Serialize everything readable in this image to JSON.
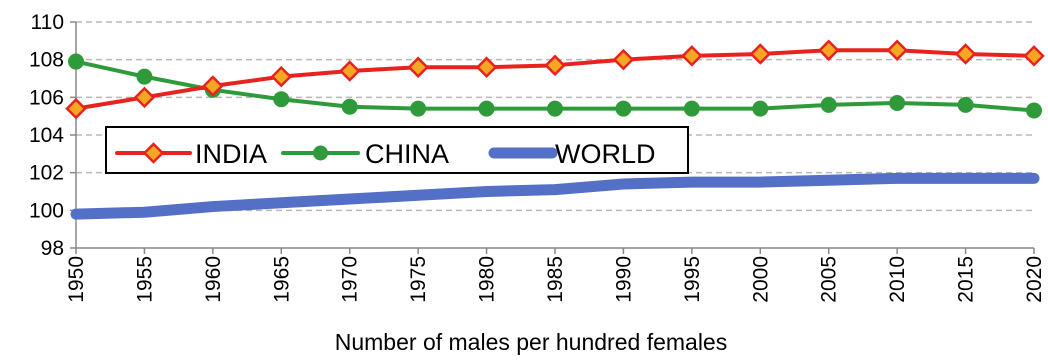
{
  "chart_data": {
    "type": "line",
    "title": "",
    "xlabel": "Number of males per hundred females",
    "ylabel": "",
    "x": [
      1950,
      1955,
      1960,
      1965,
      1970,
      1975,
      1980,
      1985,
      1990,
      1995,
      2000,
      2005,
      2010,
      2015,
      2020
    ],
    "ylim": [
      98,
      110
    ],
    "yticks": [
      98,
      100,
      102,
      104,
      106,
      108,
      110
    ],
    "grid": true,
    "legend_placement": "center-left",
    "series": [
      {
        "name": "INDIA",
        "color": "#e8231f",
        "marker": "diamond",
        "marker_fill": "#f5a623",
        "values": [
          105.4,
          106.0,
          106.6,
          107.1,
          107.4,
          107.6,
          107.6,
          107.7,
          108.0,
          108.2,
          108.3,
          108.5,
          108.5,
          108.3,
          108.2
        ]
      },
      {
        "name": "CHINA",
        "color": "#2e9a3a",
        "marker": "circle",
        "marker_fill": "#2e9a3a",
        "values": [
          107.9,
          107.1,
          106.4,
          105.9,
          105.5,
          105.4,
          105.4,
          105.4,
          105.4,
          105.4,
          105.4,
          105.6,
          105.7,
          105.6,
          105.3
        ]
      },
      {
        "name": "WORLD",
        "color": "#5470c6",
        "marker": "none",
        "values": [
          99.8,
          99.9,
          100.2,
          100.4,
          100.6,
          100.8,
          101.0,
          101.1,
          101.4,
          101.5,
          101.5,
          101.6,
          101.7,
          101.7,
          101.7
        ]
      }
    ]
  }
}
